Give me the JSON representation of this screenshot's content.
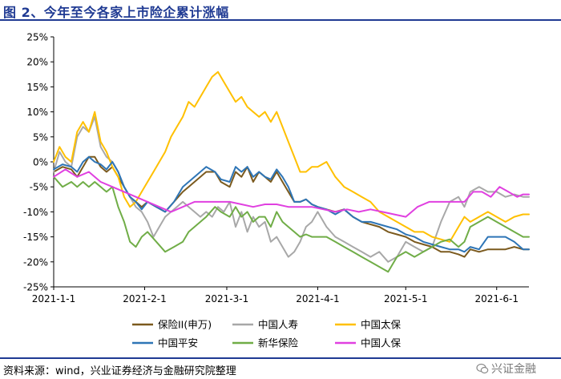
{
  "header": {
    "title": "图 2、今年至今各家上市险企累计涨幅"
  },
  "footer": {
    "source": "资料来源：wind，兴业证券经济与金融研究院整理",
    "watermark": "兴证金融"
  },
  "colors": {
    "title": "#1f3a93",
    "保险II(申万)": "#7b5a1e",
    "中国人寿": "#a8a8a8",
    "中国太保": "#ffc000",
    "中国平安": "#2e75b6",
    "新华保险": "#70ad47",
    "中国人保": "#e040e0"
  },
  "chart_data": {
    "type": "line",
    "x_tick_labels": [
      "2021-1-1",
      "2021-2-1",
      "2021-3-1",
      "2021-4-1",
      "2021-5-1",
      "2021-6-1"
    ],
    "x_tick_pos": [
      0,
      31,
      59,
      90,
      120,
      151
    ],
    "x_range": [
      0,
      162
    ],
    "ylim": [
      -25,
      25
    ],
    "y_tick_values": [
      -25,
      -20,
      -15,
      -10,
      -5,
      0,
      5,
      10,
      15,
      20,
      25
    ],
    "y_tick_labels": [
      "-25%",
      "-20%",
      "-15%",
      "-10%",
      "-5%",
      "0%",
      "5%",
      "10%",
      "15%",
      "20%",
      "25%"
    ],
    "legend_position": "bottom",
    "grid": false,
    "series": [
      {
        "name": "保险II(申万)",
        "color": "#7b5a1e",
        "x": [
          0,
          3,
          6,
          8,
          10,
          12,
          14,
          16,
          18,
          20,
          22,
          24,
          26,
          28,
          30,
          32,
          35,
          38,
          41,
          44,
          46,
          48,
          50,
          52,
          55,
          57,
          60,
          62,
          64,
          66,
          68,
          70,
          72,
          74,
          76,
          78,
          80,
          82,
          84,
          86,
          88,
          90,
          93,
          96,
          99,
          102,
          105,
          108,
          111,
          114,
          117,
          120,
          123,
          126,
          129,
          132,
          135,
          138,
          140,
          142,
          145,
          148,
          151,
          154,
          157,
          160,
          162
        ],
        "y": [
          -2,
          -1,
          -1.5,
          -3,
          -1,
          1,
          1,
          -1,
          -2,
          -1,
          -3,
          -5,
          -7,
          -8,
          -9,
          -8,
          -9,
          -10,
          -8,
          -6,
          -5,
          -4,
          -3,
          -2,
          -2,
          -4,
          -5,
          -2,
          -3,
          -1,
          -4,
          -2,
          -3,
          -4,
          -2,
          -4,
          -6,
          -8,
          -8,
          -7.5,
          -8.5,
          -9,
          -9.5,
          -10,
          -9.5,
          -11,
          -12,
          -12.5,
          -13,
          -14,
          -14.5,
          -15,
          -16,
          -16.5,
          -17,
          -18,
          -18,
          -18.5,
          -19,
          -17.5,
          -18,
          -17.5,
          -17.5,
          -17.5,
          -17,
          -17.5,
          -17.5
        ]
      },
      {
        "name": "中国人寿",
        "color": "#a8a8a8",
        "x": [
          0,
          2,
          4,
          6,
          8,
          10,
          12,
          14,
          16,
          18,
          20,
          22,
          24,
          26,
          28,
          30,
          32,
          34,
          36,
          38,
          40,
          42,
          44,
          46,
          48,
          50,
          52,
          54,
          56,
          58,
          60,
          62,
          64,
          66,
          68,
          70,
          72,
          74,
          76,
          78,
          80,
          82,
          84,
          86,
          88,
          90,
          93,
          96,
          99,
          102,
          105,
          108,
          111,
          114,
          117,
          120,
          123,
          126,
          129,
          132,
          135,
          138,
          140,
          142,
          145,
          148,
          151,
          154,
          157,
          160,
          162
        ],
        "y": [
          -2,
          2,
          0,
          -1,
          5,
          7,
          6,
          9,
          3,
          1,
          0,
          -2,
          -5,
          -7,
          -9,
          -10,
          -12,
          -15,
          -13,
          -11,
          -10,
          -9,
          -8,
          -9,
          -10,
          -11,
          -10,
          -11,
          -9,
          -10,
          -8,
          -13,
          -10,
          -14,
          -11,
          -13,
          -12,
          -16,
          -15,
          -17,
          -19,
          -18,
          -16,
          -13,
          -12,
          -10,
          -13,
          -15,
          -16,
          -17,
          -18,
          -19,
          -18,
          -20,
          -19,
          -16,
          -17,
          -18,
          -17,
          -12,
          -8,
          -7,
          -9,
          -6,
          -5,
          -6,
          -6,
          -7,
          -6.5,
          -7,
          -7
        ]
      },
      {
        "name": "中国太保",
        "color": "#ffc000",
        "x": [
          0,
          2,
          4,
          6,
          8,
          10,
          12,
          14,
          16,
          18,
          20,
          22,
          24,
          26,
          28,
          30,
          32,
          34,
          36,
          38,
          40,
          42,
          44,
          46,
          48,
          50,
          52,
          54,
          56,
          58,
          60,
          62,
          64,
          66,
          68,
          70,
          72,
          74,
          76,
          78,
          80,
          82,
          84,
          86,
          88,
          90,
          93,
          96,
          99,
          102,
          105,
          108,
          111,
          114,
          117,
          120,
          123,
          126,
          129,
          132,
          135,
          138,
          140,
          142,
          145,
          148,
          151,
          154,
          157,
          160,
          162
        ],
        "y": [
          0,
          3,
          1,
          0,
          6,
          8,
          6,
          10,
          4,
          2,
          -1,
          -3,
          -7,
          -9,
          -8,
          -6,
          -4,
          -2,
          0,
          2,
          5,
          7,
          9,
          12,
          11,
          13,
          15,
          17,
          18,
          16,
          14,
          12,
          13,
          11,
          10,
          9,
          10,
          8,
          10,
          7,
          4,
          1,
          -2,
          -2,
          -1,
          -1,
          0,
          -3,
          -5,
          -6,
          -7,
          -8,
          -10,
          -11,
          -12,
          -13,
          -14,
          -14,
          -15,
          -15.5,
          -16,
          -13,
          -11,
          -12,
          -11,
          -10,
          -11,
          -12,
          -11,
          -10.5,
          -10.5
        ]
      },
      {
        "name": "中国平安",
        "color": "#2e75b6",
        "x": [
          0,
          3,
          6,
          8,
          10,
          12,
          14,
          16,
          18,
          20,
          22,
          24,
          26,
          28,
          30,
          32,
          35,
          38,
          41,
          44,
          46,
          48,
          50,
          52,
          55,
          57,
          60,
          62,
          64,
          66,
          68,
          70,
          72,
          74,
          76,
          78,
          80,
          82,
          84,
          86,
          88,
          90,
          93,
          96,
          99,
          102,
          105,
          108,
          111,
          114,
          117,
          120,
          123,
          126,
          129,
          132,
          135,
          138,
          140,
          142,
          145,
          148,
          151,
          154,
          157,
          160,
          162
        ],
        "y": [
          -1.5,
          -0.5,
          -1,
          -2,
          0,
          1,
          0,
          -0.5,
          -1.5,
          0,
          -2,
          -5,
          -7,
          -8,
          -9.5,
          -8,
          -9,
          -10,
          -8,
          -5,
          -4,
          -3,
          -2,
          -1,
          -2,
          -3.5,
          -4,
          -1,
          -2,
          -1,
          -3,
          -2,
          -3,
          -3.5,
          -1.5,
          -3,
          -5,
          -8,
          -8,
          -7.5,
          -8.5,
          -9,
          -9.5,
          -10.5,
          -9.5,
          -11,
          -12,
          -12,
          -12.5,
          -13,
          -13.5,
          -14.5,
          -15,
          -16,
          -16.5,
          -17,
          -17.5,
          -17.5,
          -18,
          -17,
          -17.5,
          -15,
          -15,
          -15,
          -16,
          -17.5,
          -17.5
        ]
      },
      {
        "name": "新华保险",
        "color": "#70ad47",
        "x": [
          0,
          3,
          6,
          8,
          10,
          12,
          14,
          16,
          18,
          20,
          22,
          24,
          26,
          28,
          30,
          32,
          35,
          38,
          41,
          44,
          46,
          48,
          50,
          52,
          55,
          57,
          60,
          62,
          64,
          66,
          68,
          70,
          72,
          74,
          76,
          78,
          80,
          82,
          84,
          86,
          88,
          90,
          93,
          96,
          99,
          102,
          105,
          108,
          111,
          114,
          117,
          120,
          123,
          126,
          129,
          132,
          135,
          138,
          140,
          142,
          145,
          148,
          151,
          154,
          157,
          160,
          162
        ],
        "y": [
          -3,
          -5,
          -4,
          -5,
          -4,
          -5,
          -4,
          -5,
          -6,
          -5,
          -9,
          -12,
          -16,
          -17,
          -15,
          -14,
          -16,
          -18,
          -17,
          -16,
          -14,
          -13,
          -12,
          -11,
          -9,
          -10,
          -11,
          -9,
          -11,
          -10,
          -12,
          -11,
          -11,
          -13,
          -10,
          -12,
          -13,
          -14,
          -15,
          -14.5,
          -15,
          -15,
          -15,
          -16,
          -17,
          -18,
          -19,
          -20,
          -21,
          -22,
          -19,
          -18,
          -19,
          -18,
          -17,
          -16,
          -15.5,
          -17,
          -16,
          -13,
          -12,
          -11,
          -12,
          -13,
          -14,
          -15,
          -15
        ]
      },
      {
        "name": "中国人保",
        "color": "#e040e0",
        "x": [
          0,
          4,
          8,
          12,
          16,
          20,
          24,
          28,
          32,
          36,
          40,
          44,
          48,
          52,
          56,
          60,
          64,
          68,
          72,
          76,
          80,
          84,
          88,
          92,
          96,
          100,
          104,
          108,
          112,
          116,
          120,
          124,
          128,
          132,
          136,
          140,
          143,
          146,
          149,
          152,
          155,
          158,
          160,
          162
        ],
        "y": [
          -3,
          -1.5,
          -3,
          -2,
          -4,
          -5,
          -6,
          -7,
          -8,
          -9,
          -10,
          -9,
          -8,
          -8,
          -8,
          -8,
          -8.5,
          -9,
          -8.5,
          -8.5,
          -9,
          -9,
          -9,
          -9.5,
          -10,
          -9.5,
          -10,
          -9.5,
          -10,
          -10.5,
          -11,
          -9,
          -8,
          -8,
          -8,
          -8,
          -6,
          -6,
          -7,
          -5,
          -6,
          -7,
          -6.5,
          -6.5
        ]
      }
    ]
  }
}
